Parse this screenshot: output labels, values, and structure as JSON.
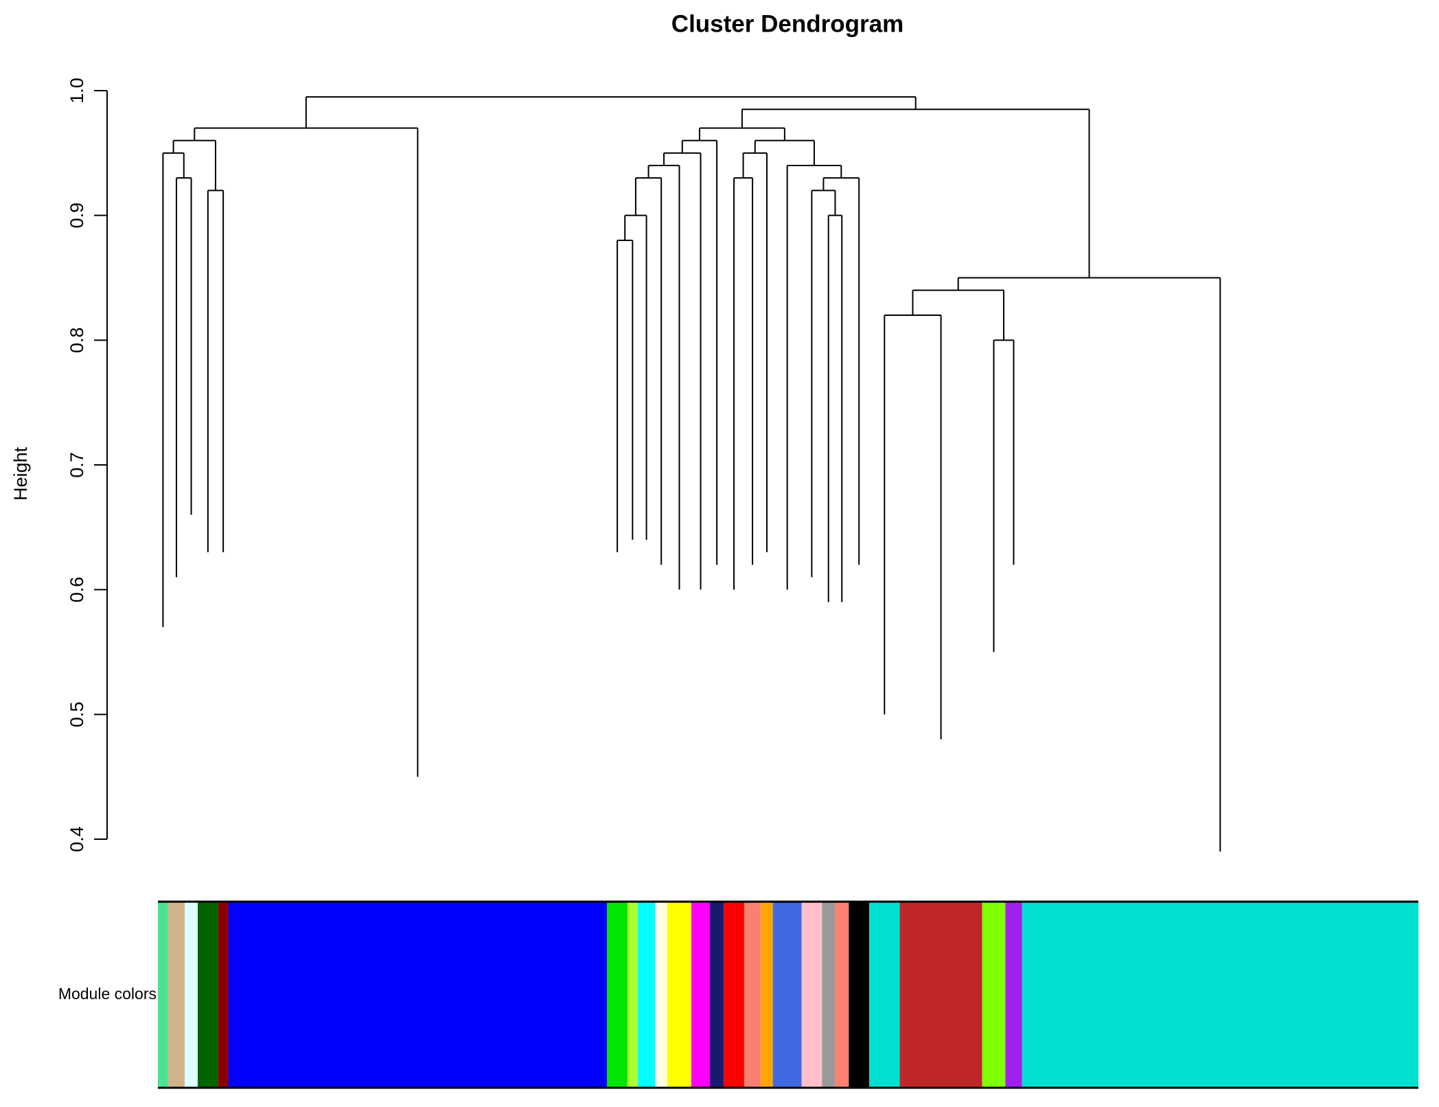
{
  "chart_data": {
    "type": "dendrogram",
    "title": "Cluster Dendrogram",
    "y_label": "Height",
    "ylim": [
      0.4,
      1.0
    ],
    "yticks": [
      0.4,
      0.5,
      0.6,
      0.7,
      0.8,
      0.9,
      {
        "value": 1,
        "label": "1.0"
      }
    ],
    "color_bar_label": "Module colors",
    "modules": [
      {
        "color": "#4be38f",
        "size": 11,
        "bottom": 0.57
      },
      {
        "color": "#d2b48c",
        "size": 18,
        "bottom": 0.61
      },
      {
        "color": "#e0ffff",
        "size": 14,
        "bottom": 0.66
      },
      {
        "color": "#006400",
        "size": 22,
        "bottom": 0.63
      },
      {
        "color": "#8b0000",
        "size": 11,
        "bottom": 0.63
      },
      {
        "color": "#0000ff",
        "size": 409,
        "bottom": 0.45
      },
      {
        "color": "#00e600",
        "size": 22,
        "bottom": 0.63
      },
      {
        "color": "#adff2f",
        "size": 11,
        "bottom": 0.64
      },
      {
        "color": "#00ffff",
        "size": 19,
        "bottom": 0.64
      },
      {
        "color": "#ffffe0",
        "size": 13,
        "bottom": 0.62
      },
      {
        "color": "#ffff00",
        "size": 26,
        "bottom": 0.6
      },
      {
        "color": "#ff00ff",
        "size": 20,
        "bottom": 0.6
      },
      {
        "color": "#191970",
        "size": 15,
        "bottom": 0.62
      },
      {
        "color": "#ff0000",
        "size": 22,
        "bottom": 0.6
      },
      {
        "color": "#fa8072",
        "size": 18,
        "bottom": 0.62
      },
      {
        "color": "#ffa500",
        "size": 13,
        "bottom": 0.63
      },
      {
        "color": "#4169e1",
        "size": 31,
        "bottom": 0.6
      },
      {
        "color": "#ffc0cb",
        "size": 22,
        "bottom": 0.61
      },
      {
        "color": "#999999",
        "size": 14,
        "bottom": 0.59
      },
      {
        "color": "#fa8072",
        "size": 15,
        "bottom": 0.59
      },
      {
        "color": "#000000",
        "size": 22,
        "bottom": 0.62
      },
      {
        "color": "#00e0cf",
        "size": 33,
        "bottom": 0.5
      },
      {
        "color": "#bf2727",
        "size": 89,
        "bottom": 0.48
      },
      {
        "color": "#7fff00",
        "size": 25,
        "bottom": 0.55
      },
      {
        "color": "#a020f0",
        "size": 18,
        "bottom": 0.62
      },
      {
        "color": "#00e0cf",
        "size": 428,
        "bottom": 0.39
      }
    ],
    "merge_heights": [
      0.95,
      0.93,
      0.96,
      0.92,
      0.97,
      0.995,
      0.88,
      0.9,
      0.93,
      0.94,
      0.95,
      0.96,
      0.97,
      0.93,
      0.95,
      0.96,
      0.94,
      0.92,
      0.9,
      0.93,
      0.985,
      0.82,
      0.84,
      0.8,
      0.85
    ]
  }
}
